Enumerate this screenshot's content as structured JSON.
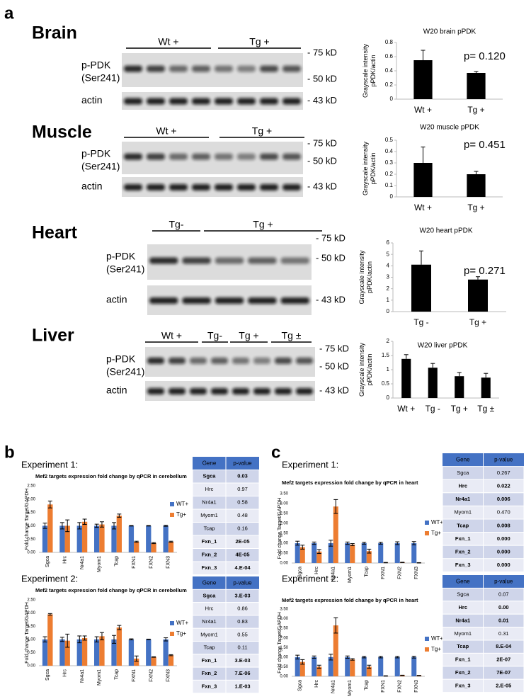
{
  "panel_labels": [
    "a",
    "b",
    "c"
  ],
  "experiments": [
    "Experiment 1:",
    "Experiment 2:",
    "Experiment 1:",
    "Experiment 2:"
  ],
  "blots": [
    {
      "tissue": "Brain",
      "groups": [
        "Wt  +",
        "Tg  +"
      ],
      "protein": [
        "p-PDK",
        "(Ser241)"
      ],
      "control": "actin",
      "markers": [
        "- 75 kD",
        "- 50 kD"
      ],
      "control_marker": "- 43 kD"
    },
    {
      "tissue": "Muscle",
      "groups": [
        "Wt  +",
        "Tg  +"
      ],
      "protein": [
        "p-PDK",
        "(Ser241)"
      ],
      "control": "actin",
      "markers": [
        "- 75 kD",
        "- 50 kD"
      ],
      "control_marker": "- 43 kD"
    },
    {
      "tissue": "Heart",
      "groups": [
        "Tg-",
        "Tg  +"
      ],
      "protein": [
        "p-PDK",
        "(Ser241)"
      ],
      "control": "actin",
      "markers": [
        "- 75 kD",
        "- 50 kD"
      ],
      "control_marker": "- 43 kD"
    },
    {
      "tissue": "Liver",
      "groups": [
        "Wt  +",
        "Tg-",
        "Tg  +",
        "Tg ±"
      ],
      "protein": [
        "p-PDK",
        "(Ser241)"
      ],
      "control": "actin",
      "markers": [
        "- 75 kD",
        "- 50 kD"
      ],
      "control_marker": "- 43 kD"
    }
  ],
  "chart_data": [
    {
      "type": "bar",
      "title": "W20 brain pPDK",
      "ylabel": [
        "Grayscale intensity",
        "pPDK/actin"
      ],
      "categories": [
        "Wt +",
        "Tg +"
      ],
      "values": [
        0.55,
        0.37
      ],
      "error": [
        0.14,
        0.02
      ],
      "color": "#000000",
      "ylim": [
        0,
        0.8
      ],
      "yticks": [
        0,
        0.2,
        0.4,
        0.6,
        0.8
      ],
      "annotation": "p= 0.120",
      "grid": false
    },
    {
      "type": "bar",
      "title": "W20 muscle pPDK",
      "ylabel": [
        "Grayscale intensity",
        "pPDK/actin"
      ],
      "categories": [
        "Wt +",
        "Tg +"
      ],
      "values": [
        0.3,
        0.2
      ],
      "error": [
        0.14,
        0.025
      ],
      "color": "#000000",
      "ylim": [
        0,
        0.5
      ],
      "yticks": [
        0,
        0.1,
        0.2,
        0.3,
        0.4,
        0.5
      ],
      "annotation": "p= 0.451",
      "grid": false
    },
    {
      "type": "bar",
      "title": "W20 heart pPDK",
      "ylabel": [
        "Grayscale intensity",
        "pPDK/actin"
      ],
      "categories": [
        "Tg -",
        "Tg +"
      ],
      "values": [
        4.1,
        2.8
      ],
      "error": [
        1.2,
        0.25
      ],
      "color": "#000000",
      "ylim": [
        0,
        6
      ],
      "yticks": [
        0,
        1,
        2,
        3,
        4,
        5,
        6
      ],
      "annotation": "p= 0.271",
      "grid": false
    },
    {
      "type": "bar",
      "title": "W20 liver pPDK",
      "ylabel": [
        "Grayscale intensity",
        "pPDK/actin"
      ],
      "categories": [
        "Wt +",
        "Tg -",
        "Tg +",
        "Tg ±"
      ],
      "values": [
        1.38,
        1.07,
        0.77,
        0.72
      ],
      "error": [
        0.15,
        0.15,
        0.13,
        0.15
      ],
      "color": "#000000",
      "ylim": [
        0,
        2
      ],
      "yticks": [
        0,
        0.5,
        1,
        1.5,
        2
      ],
      "grid": false
    },
    {
      "type": "bar",
      "title": "Mef2 targets expression fold change by qPCR in cerebellum",
      "ylabel": "Fold change Target/GAPDH",
      "categories": [
        "Sgca",
        "Hrc",
        "Nr4a1",
        "Myom1",
        "Tcap",
        "FXN1",
        "FXN2",
        "FXN3"
      ],
      "series": [
        {
          "name": "WT+",
          "color": "#4472c4",
          "values": [
            1,
            1,
            1,
            1,
            1,
            1,
            1,
            1
          ],
          "error": [
            0.1,
            0.12,
            0.12,
            0.06,
            0.12,
            0.01,
            0.01,
            0.02
          ]
        },
        {
          "name": "Tg+",
          "color": "#ed7d31",
          "values": [
            1.8,
            1.0,
            1.15,
            1.05,
            1.38,
            0.4,
            0.35,
            0.4
          ],
          "error": [
            0.13,
            0.22,
            0.1,
            0.1,
            0.06,
            0.02,
            0.02,
            0.02
          ]
        }
      ],
      "ylim": [
        0,
        2.5
      ],
      "yticks": [
        {
          "value": 0,
          "label": "0.00"
        },
        {
          "value": 0.5,
          "label": "0.50"
        },
        {
          "value": 1,
          "label": "1.00"
        },
        {
          "value": 1.5,
          "label": "1.50"
        },
        {
          "value": 2,
          "label": "2.00"
        },
        {
          "value": 2.5,
          "label": "2.50"
        }
      ],
      "grid": false,
      "legend": "right"
    },
    {
      "type": "bar",
      "title": "Mef2 targets expression fold change by qPCR in cerebellum",
      "ylabel": "Fold change Target/GAPDH",
      "categories": [
        "Sgca",
        "Hrc",
        "Nr4a1",
        "Myom1",
        "Tcap",
        "FXN1",
        "FXN2",
        "FXN3"
      ],
      "series": [
        {
          "name": "WT+",
          "color": "#4472c4",
          "values": [
            1,
            1,
            1,
            1,
            1,
            1,
            1,
            1
          ],
          "error": [
            0.1,
            0.08,
            0.13,
            0.1,
            0.15,
            0.02,
            0.01,
            0.06
          ]
        },
        {
          "name": "Tg+",
          "color": "#ed7d31",
          "values": [
            1.95,
            0.95,
            1.05,
            1.12,
            1.45,
            0.27,
            0.33,
            0.4
          ],
          "error": [
            0.03,
            0.25,
            0.08,
            0.14,
            0.08,
            0.1,
            0.01,
            0.02
          ]
        }
      ],
      "ylim": [
        0,
        2.5
      ],
      "yticks": [
        {
          "value": 0,
          "label": "0.00"
        },
        {
          "value": 0.5,
          "label": "0.50"
        },
        {
          "value": 1,
          "label": "1.00"
        },
        {
          "value": 1.5,
          "label": "1.50"
        },
        {
          "value": 2,
          "label": "2.00"
        },
        {
          "value": 2.5,
          "label": "2.50"
        }
      ],
      "grid": false,
      "legend": "right"
    },
    {
      "type": "bar",
      "title": "Mef2 targets expression fold change by qPCR in heart",
      "ylabel": "Fold change Target/GAPDH",
      "categories": [
        "Sgca",
        "Hrc",
        "Nr4a1",
        "Myom1",
        "Tcap",
        "FXN1",
        "FXN2",
        "FXN3"
      ],
      "series": [
        {
          "name": "WT+",
          "color": "#4472c4",
          "values": [
            1,
            1,
            1,
            1,
            1,
            1,
            1,
            1
          ],
          "error": [
            0.1,
            0.06,
            0.15,
            0.06,
            0.05,
            0.05,
            0.07,
            0.08
          ]
        },
        {
          "name": "Tg+",
          "color": "#ed7d31",
          "values": [
            0.8,
            0.58,
            2.85,
            0.93,
            0.6,
            0.02,
            0.03,
            0.01
          ],
          "error": [
            0.1,
            0.1,
            0.35,
            0.05,
            0.1,
            0.01,
            0.01,
            0.01
          ]
        }
      ],
      "ylim": [
        0,
        3.5
      ],
      "yticks": [
        {
          "value": 0,
          "label": "0.00"
        },
        {
          "value": 0.5,
          "label": "0.50"
        },
        {
          "value": 1,
          "label": "1.00"
        },
        {
          "value": 1.5,
          "label": "1.50"
        },
        {
          "value": 2,
          "label": "2.00"
        },
        {
          "value": 2.5,
          "label": "2.50"
        },
        {
          "value": 3,
          "label": "3.00"
        },
        {
          "value": 3.5,
          "label": "3.50"
        }
      ],
      "grid": false,
      "legend": "right"
    },
    {
      "type": "bar",
      "title": "Mef2 targets expression fold change by qPCR in heart",
      "ylabel": "Fold change Target/GAPDH",
      "categories": [
        "Sgca",
        "Hrc",
        "Nr4a1",
        "Myom1",
        "Tcap",
        "FXN1",
        "FXN2",
        "FXN3"
      ],
      "series": [
        {
          "name": "WT+",
          "color": "#4472c4",
          "values": [
            1,
            1,
            1,
            1,
            1,
            1,
            1,
            1
          ],
          "error": [
            0.1,
            0.06,
            0.15,
            0.06,
            0.04,
            0.04,
            0.04,
            0.05
          ]
        },
        {
          "name": "Tg+",
          "color": "#ed7d31",
          "values": [
            0.75,
            0.5,
            2.65,
            0.88,
            0.5,
            0.02,
            0.05,
            0.04
          ],
          "error": [
            0.12,
            0.08,
            0.4,
            0.04,
            0.08,
            0.01,
            0.01,
            0.01
          ]
        }
      ],
      "ylim": [
        0,
        3.5
      ],
      "yticks": [
        {
          "value": 0,
          "label": "0.00"
        },
        {
          "value": 0.5,
          "label": "0.50"
        },
        {
          "value": 1,
          "label": "1.00"
        },
        {
          "value": 1.5,
          "label": "1.50"
        },
        {
          "value": 2,
          "label": "2.00"
        },
        {
          "value": 2.5,
          "label": "2.50"
        },
        {
          "value": 3,
          "label": "3.00"
        },
        {
          "value": 3.5,
          "label": "3.50"
        }
      ],
      "grid": false,
      "legend": "right"
    }
  ],
  "tables": [
    {
      "header": [
        "Gene",
        "p-value"
      ],
      "rows": [
        {
          "cells": [
            "Sgca",
            "0.03"
          ],
          "bold": true
        },
        {
          "cells": [
            "Hrc",
            "0.97"
          ],
          "bold": false
        },
        {
          "cells": [
            "Nr4a1",
            "0.58"
          ],
          "bold": false
        },
        {
          "cells": [
            "Myom1",
            "0.48"
          ],
          "bold": false
        },
        {
          "cells": [
            "Tcap",
            "0.16"
          ],
          "bold": false
        },
        {
          "cells": [
            "Fxn_1",
            "2E-05"
          ],
          "bold": true
        },
        {
          "cells": [
            "Fxn_2",
            "4E-05"
          ],
          "bold": true
        },
        {
          "cells": [
            "Fxn_3",
            "4.E-04"
          ],
          "bold": true
        }
      ]
    },
    {
      "header": [
        "Gene",
        "p-value"
      ],
      "rows": [
        {
          "cells": [
            "Sgca",
            "3.E-03"
          ],
          "bold": true
        },
        {
          "cells": [
            "Hrc",
            "0.86"
          ],
          "bold": false
        },
        {
          "cells": [
            "Nr4a1",
            "0.83"
          ],
          "bold": false
        },
        {
          "cells": [
            "Myom1",
            "0.55"
          ],
          "bold": false
        },
        {
          "cells": [
            "Tcap",
            "0.11"
          ],
          "bold": false
        },
        {
          "cells": [
            "Fxn_1",
            "3.E-03"
          ],
          "bold": true
        },
        {
          "cells": [
            "Fxn_2",
            "7.E-06"
          ],
          "bold": true
        },
        {
          "cells": [
            "Fxn_3",
            "1.E-03"
          ],
          "bold": true
        }
      ]
    },
    {
      "header": [
        "Gene",
        "p-value"
      ],
      "rows": [
        {
          "cells": [
            "Sgca",
            "0.267"
          ],
          "bold": false
        },
        {
          "cells": [
            "Hrc",
            "0.022"
          ],
          "bold": true
        },
        {
          "cells": [
            "Nr4a1",
            "0.006"
          ],
          "bold": true
        },
        {
          "cells": [
            "Myom1",
            "0.470"
          ],
          "bold": false
        },
        {
          "cells": [
            "Tcap",
            "0.008"
          ],
          "bold": true
        },
        {
          "cells": [
            "Fxn_1",
            "0.000"
          ],
          "bold": true
        },
        {
          "cells": [
            "Fxn_2",
            "0.000"
          ],
          "bold": true
        },
        {
          "cells": [
            "Fxn_3",
            "0.000"
          ],
          "bold": true
        }
      ]
    },
    {
      "header": [
        "Gene",
        "p-value"
      ],
      "rows": [
        {
          "cells": [
            "Sgca",
            "0.07"
          ],
          "bold": false
        },
        {
          "cells": [
            "Hrc",
            "0.00"
          ],
          "bold": true
        },
        {
          "cells": [
            "Nr4a1",
            "0.01"
          ],
          "bold": true
        },
        {
          "cells": [
            "Myom1",
            "0.31"
          ],
          "bold": false
        },
        {
          "cells": [
            "Tcap",
            "8.E-04"
          ],
          "bold": true
        },
        {
          "cells": [
            "Fxn_1",
            "2E-07"
          ],
          "bold": true
        },
        {
          "cells": [
            "Fxn_2",
            "7E-07"
          ],
          "bold": true
        },
        {
          "cells": [
            "Fxn_3",
            "2.E-05"
          ],
          "bold": true
        }
      ]
    }
  ]
}
